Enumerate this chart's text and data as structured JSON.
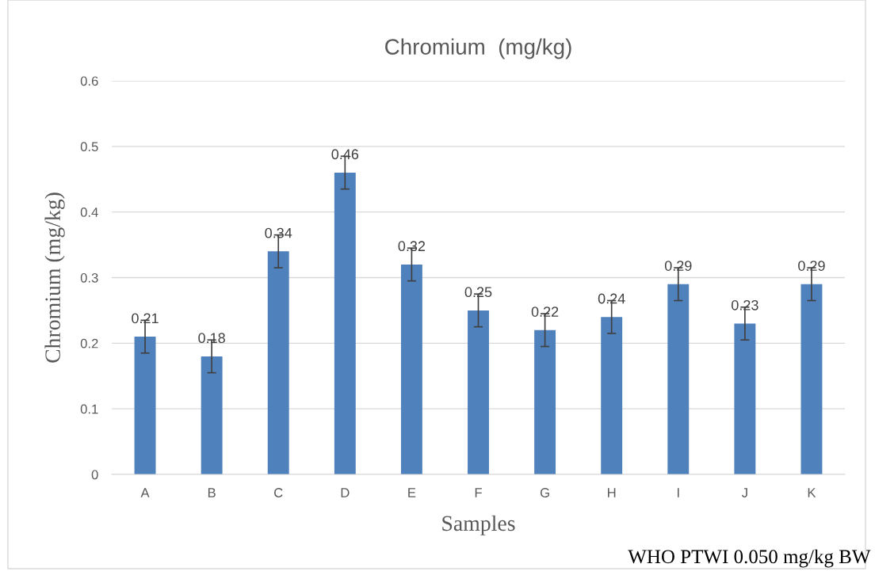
{
  "chart_data": {
    "type": "bar",
    "title": "Chromium  (mg/kg)",
    "xlabel": "Samples",
    "ylabel": "Chromium (mg/kg)",
    "categories": [
      "A",
      "B",
      "C",
      "D",
      "E",
      "F",
      "G",
      "H",
      "I",
      "J",
      "K"
    ],
    "values": [
      0.21,
      0.18,
      0.34,
      0.46,
      0.32,
      0.25,
      0.22,
      0.24,
      0.29,
      0.23,
      0.29
    ],
    "errors": [
      0.025,
      0.025,
      0.025,
      0.025,
      0.025,
      0.025,
      0.025,
      0.025,
      0.025,
      0.025,
      0.025
    ],
    "color": "#4f81bd",
    "ylim": [
      0,
      0.6
    ],
    "yticks": [
      0,
      0.1,
      0.2,
      0.3,
      0.4,
      0.5,
      0.6
    ],
    "grid": "y",
    "data_labels": true,
    "legend": false,
    "annotations": [
      "WHO PTWI 0.050 mg/kg BW"
    ]
  }
}
